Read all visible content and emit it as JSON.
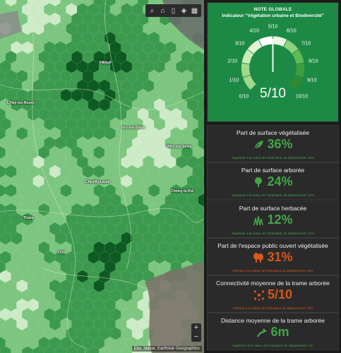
{
  "map": {
    "toolbar": [
      {
        "name": "search-icon",
        "glyph": "⌕"
      },
      {
        "name": "home-icon",
        "glyph": "⌂"
      },
      {
        "name": "page-icon",
        "glyph": "▯"
      },
      {
        "name": "layers-icon",
        "glyph": "◈"
      },
      {
        "name": "grid-icon",
        "glyph": "▦"
      }
    ],
    "places": [
      "Villejuif",
      "L'Haÿ-les-Roses",
      "Chevilly-Larue",
      "Thiais",
      "Orly",
      "Choisy-le-Roi",
      "Vitry-sur-Seine",
      "Ivry-sur-Seine"
    ],
    "zoom_in": "+",
    "zoom_out": "−",
    "attribution": "Esri, Maxar, Earthstar Geographics",
    "colors": {
      "dark": "#0d5a22",
      "mid": "#3b9a4e",
      "light": "#7cc680",
      "pale": "#cdebc6"
    }
  },
  "score": {
    "title": "NOTE GLOBALE",
    "subtitle": "Indicateur \"Végétation urbaine et Biodiversité\"",
    "value": "5/10",
    "level": 5,
    "ticks": [
      "0/10",
      "1/10",
      "2/10",
      "3/10",
      "4/10",
      "5/10",
      "6/10",
      "7/10",
      "8/10",
      "9/10",
      "10/10"
    ]
  },
  "cards": [
    {
      "title": "Part de surface végétalisée",
      "value": "36%",
      "note": "Supérieur à la valeur de l'indicateur du département: 30%",
      "icon": "leaf-icon",
      "tone": "green"
    },
    {
      "title": "Part de surface arborée",
      "value": "24%",
      "note": "Supérieur à la valeur de l'indicateur du département: 24%",
      "icon": "tree-icon",
      "tone": "green"
    },
    {
      "title": "Part de surface herbacée",
      "value": "12%",
      "note": "Supérieur à la valeur de l'indicateur du département: 12%",
      "icon": "grass-icon",
      "tone": "green"
    },
    {
      "title": "Part de l'espace public ouvert végétalisée",
      "value": "31%",
      "note": "Inférieur à la valeur de l'indicateur du département: 44%",
      "icon": "trees-icon",
      "tone": "orange"
    },
    {
      "title": "Connectivité moyenne de la trame arborée",
      "value": "5/10",
      "note": "Inférieur à la valeur de l'indicateur du département: 7/10",
      "icon": "network-icon",
      "tone": "orange"
    },
    {
      "title": "Distance moyenne de la trame arborée",
      "value": "6m",
      "note": "Supérieur à la valeur de l'indicateur du département: 8m",
      "icon": "arrow-icon",
      "tone": "green"
    }
  ]
}
